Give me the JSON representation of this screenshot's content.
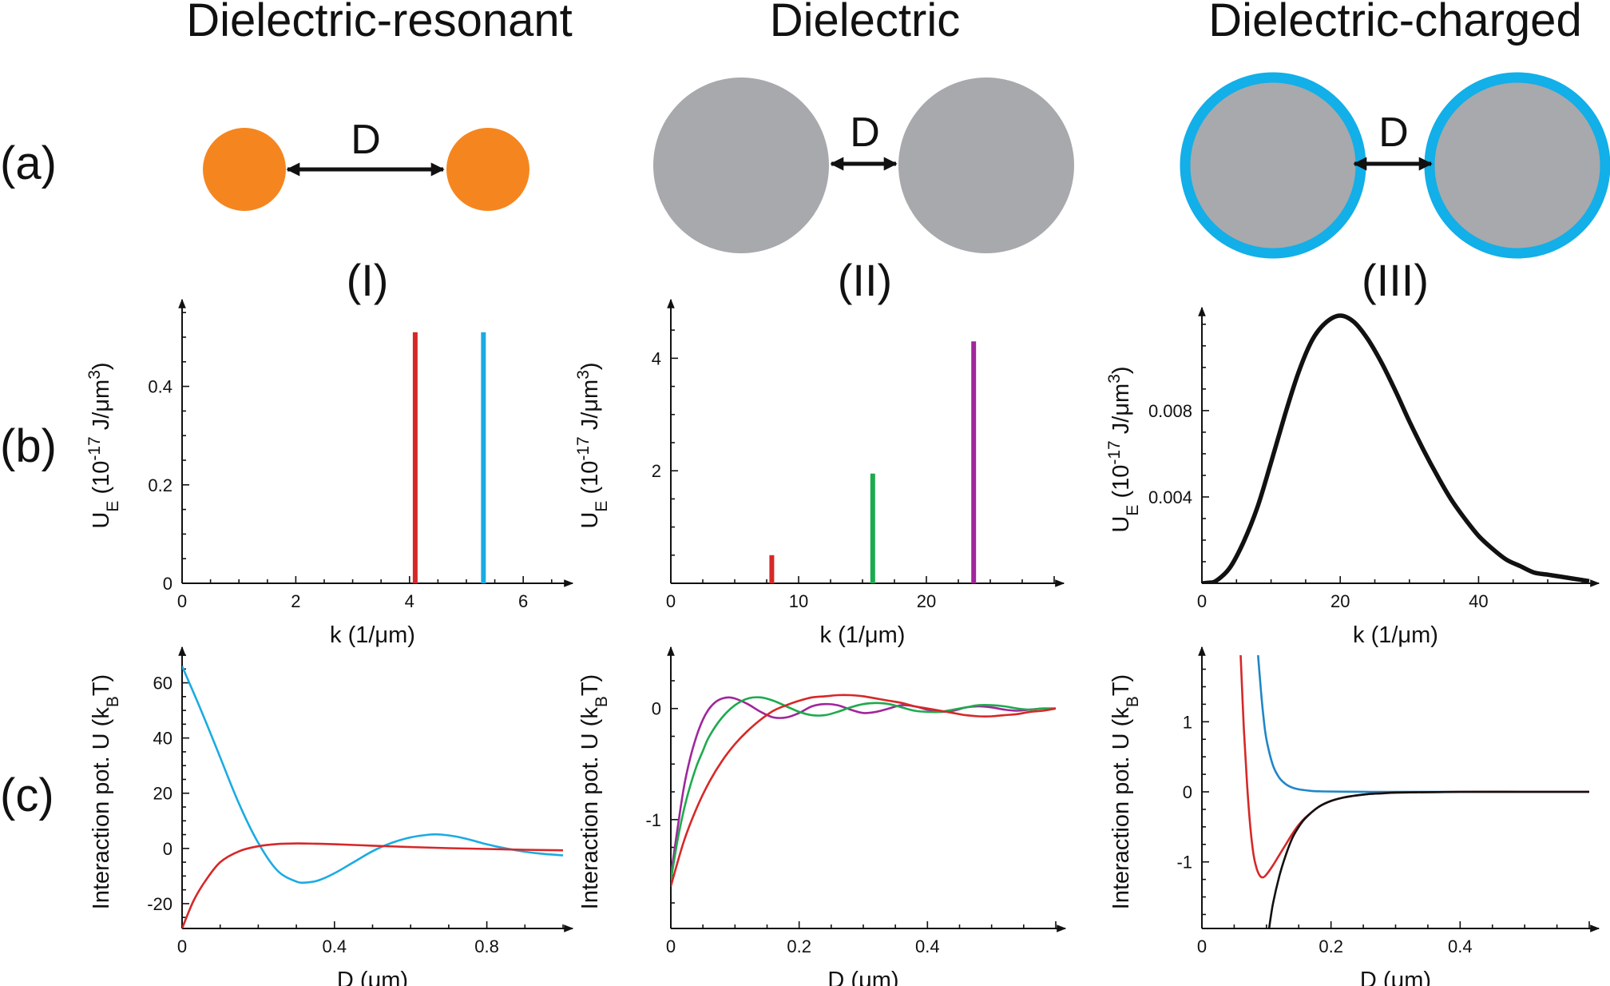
{
  "columns": [
    {
      "title": "Dielectric-resonant",
      "roman": "(I)",
      "particle": {
        "fill": "#F5861F",
        "shell": null
      }
    },
    {
      "title": "Dielectric",
      "roman": "(II)",
      "particle": {
        "fill": "#A7A9AC",
        "shell": null
      }
    },
    {
      "title": "Dielectric-charged",
      "roman": "(III)",
      "particle": {
        "fill": "#A7A9AC",
        "shell": "#12AFE8"
      }
    }
  ],
  "row_labels": [
    "(a)",
    "(b)",
    "(c)"
  ],
  "separation_label": "D",
  "colors": {
    "red": "#D62828",
    "cyan": "#1AABE2",
    "green": "#1EAA4E",
    "purple": "#A0269B",
    "blue": "#1F86C8",
    "black": "#111111"
  },
  "chart_data": [
    {
      "id": "b1",
      "type": "bar",
      "xlabel": "k (1/μm)",
      "ylabel": "U",
      "ylabel_sub": "E",
      "ylabel_paren": " (10",
      "ylabel_exp": "-17",
      "ylabel_unit": " J/μm",
      "ylabel_unit_exp": "3",
      "ylabel_close": ")",
      "xlim": [
        0,
        6.7
      ],
      "ylim": [
        0,
        0.56
      ],
      "xticks": [
        0,
        2,
        4,
        6
      ],
      "xtick_labels": [
        "0",
        "2",
        "4",
        "6"
      ],
      "yticks": [
        0,
        0.2,
        0.4
      ],
      "ytick_labels": [
        "0",
        "0.2",
        "0.4"
      ],
      "bars": [
        {
          "x": 4.1,
          "value": 0.51,
          "color": "red"
        },
        {
          "x": 5.3,
          "value": 0.51,
          "color": "cyan"
        }
      ]
    },
    {
      "id": "b2",
      "type": "bar",
      "xlabel": "k (1/μm)",
      "ylabel": "U",
      "ylabel_sub": "E",
      "ylabel_paren": " (10",
      "ylabel_exp": "-17",
      "ylabel_unit": " J/μm",
      "ylabel_unit_exp": "3",
      "ylabel_close": ")",
      "xlim": [
        0,
        30
      ],
      "ylim": [
        0,
        4.9
      ],
      "xticks": [
        0,
        10,
        20
      ],
      "xtick_labels": [
        "0",
        "10",
        "20"
      ],
      "yticks": [
        2,
        4
      ],
      "ytick_labels": [
        "2",
        "4"
      ],
      "bars": [
        {
          "x": 7.9,
          "value": 0.5,
          "color": "red"
        },
        {
          "x": 15.8,
          "value": 1.95,
          "color": "green"
        },
        {
          "x": 23.7,
          "value": 4.3,
          "color": "purple"
        }
      ]
    },
    {
      "id": "b3",
      "type": "line",
      "xlabel": "k (1/μm)",
      "ylabel": "U",
      "ylabel_sub": "E",
      "ylabel_paren": " (10",
      "ylabel_exp": "-17",
      "ylabel_unit": " J/μm",
      "ylabel_unit_exp": "3",
      "ylabel_close": ")",
      "xlim": [
        0,
        56
      ],
      "ylim": [
        0,
        0.0124
      ],
      "xticks": [
        0,
        20,
        40
      ],
      "xtick_labels": [
        "0",
        "20",
        "40"
      ],
      "yticks": [
        0.004,
        0.008
      ],
      "ytick_labels": [
        "0.004",
        "0.008"
      ],
      "series": [
        {
          "color": "black",
          "x": [
            0,
            1,
            2,
            4,
            6,
            8,
            10,
            12,
            14,
            16,
            18,
            20,
            22,
            24,
            26,
            28,
            30,
            32,
            34,
            36,
            38,
            40,
            42,
            44,
            46,
            48,
            50,
            52,
            54,
            56
          ],
          "y": [
            0,
            3e-05,
            0.0001,
            0.0007,
            0.0019,
            0.0035,
            0.0056,
            0.0078,
            0.0098,
            0.0113,
            0.0121,
            0.0124,
            0.0121,
            0.0113,
            0.0102,
            0.0089,
            0.0075,
            0.0062,
            0.005,
            0.0039,
            0.003,
            0.0022,
            0.0016,
            0.0011,
            0.0008,
            0.0005,
            0.0004,
            0.0003,
            0.0002,
            0.0001
          ]
        }
      ]
    },
    {
      "id": "c1",
      "type": "line",
      "xlabel": "D (μm)",
      "ylabel": "Interaction pot. U (k",
      "ylabel_sub": "B",
      "ylabel_close": "T)",
      "xlim": [
        0,
        1.0
      ],
      "ylim": [
        -29,
        70
      ],
      "xticks": [
        0,
        0.4,
        0.8
      ],
      "xtick_labels": [
        "0",
        "0.4",
        "0.8"
      ],
      "yticks": [
        -20,
        0,
        20,
        40,
        60
      ],
      "ytick_labels": [
        "-20",
        "0",
        "20",
        "40",
        "60"
      ],
      "series": [
        {
          "color": "cyan",
          "x": [
            0,
            0.05,
            0.1,
            0.15,
            0.2,
            0.25,
            0.3,
            0.33,
            0.36,
            0.4,
            0.45,
            0.5,
            0.55,
            0.6,
            0.65,
            0.68,
            0.72,
            0.76,
            0.8,
            0.85,
            0.9,
            0.95,
            1.0
          ],
          "y": [
            66,
            50,
            33,
            16,
            2,
            -8,
            -12,
            -12.3,
            -11.5,
            -9,
            -5,
            -1,
            2,
            4,
            5,
            5,
            4.3,
            3,
            1.5,
            0,
            -1.2,
            -2,
            -2.5
          ]
        },
        {
          "color": "red",
          "x": [
            0,
            0.03,
            0.06,
            0.1,
            0.15,
            0.2,
            0.25,
            0.3,
            0.35,
            0.4,
            0.5,
            0.6,
            0.7,
            0.8,
            0.9,
            1.0
          ],
          "y": [
            -29,
            -19,
            -12,
            -5,
            -1,
            0.8,
            1.6,
            1.8,
            1.7,
            1.5,
            1.0,
            0.5,
            0.1,
            -0.2,
            -0.5,
            -0.7
          ]
        }
      ]
    },
    {
      "id": "c2",
      "type": "line",
      "xlabel": "D (μm)",
      "ylabel": "Interaction pot. U (k",
      "ylabel_sub": "B",
      "ylabel_close": "T)",
      "xlim": [
        0,
        0.6
      ],
      "ylim": [
        -1.98,
        0.48
      ],
      "xticks": [
        0,
        0.2,
        0.4
      ],
      "xtick_labels": [
        "0",
        "0.2",
        "0.4"
      ],
      "yticks": [
        -1,
        0
      ],
      "ytick_labels": [
        "-1",
        "0"
      ],
      "series": [
        {
          "color": "purple",
          "x": [
            0,
            0.005,
            0.01,
            0.02,
            0.03,
            0.04,
            0.05,
            0.06,
            0.07,
            0.08,
            0.09,
            0.1,
            0.12,
            0.14,
            0.16,
            0.18,
            0.2,
            0.22,
            0.24,
            0.26,
            0.28,
            0.3,
            0.32,
            0.34,
            0.36,
            0.38,
            0.4,
            0.42,
            0.44,
            0.46,
            0.48,
            0.5,
            0.52,
            0.54,
            0.56,
            0.58,
            0.6
          ],
          "y": [
            -1.5,
            -1.3,
            -1.1,
            -0.72,
            -0.45,
            -0.25,
            -0.1,
            0.0,
            0.06,
            0.09,
            0.1,
            0.09,
            0.04,
            -0.03,
            -0.08,
            -0.08,
            -0.04,
            0.02,
            0.04,
            0.03,
            -0.01,
            -0.04,
            -0.03,
            0.0,
            0.03,
            0.02,
            -0.01,
            -0.03,
            -0.02,
            0.01,
            0.02,
            0.01,
            -0.01,
            -0.02,
            -0.01,
            0.0,
            0.0
          ]
        },
        {
          "color": "green",
          "x": [
            0,
            0.01,
            0.02,
            0.03,
            0.04,
            0.05,
            0.06,
            0.08,
            0.1,
            0.12,
            0.14,
            0.16,
            0.18,
            0.2,
            0.22,
            0.24,
            0.26,
            0.28,
            0.3,
            0.32,
            0.34,
            0.36,
            0.38,
            0.4,
            0.42,
            0.44,
            0.46,
            0.48,
            0.5,
            0.52,
            0.54,
            0.56,
            0.58,
            0.6
          ],
          "y": [
            -1.55,
            -1.2,
            -0.92,
            -0.7,
            -0.52,
            -0.38,
            -0.25,
            -0.08,
            0.03,
            0.09,
            0.1,
            0.07,
            0.02,
            -0.03,
            -0.06,
            -0.06,
            -0.03,
            0.01,
            0.04,
            0.05,
            0.04,
            0.01,
            -0.02,
            -0.03,
            -0.03,
            -0.01,
            0.01,
            0.03,
            0.03,
            0.02,
            0.0,
            -0.01,
            0.0,
            0.0
          ]
        },
        {
          "color": "red",
          "x": [
            0,
            0.02,
            0.04,
            0.06,
            0.08,
            0.1,
            0.12,
            0.14,
            0.16,
            0.18,
            0.2,
            0.22,
            0.24,
            0.26,
            0.28,
            0.3,
            0.32,
            0.34,
            0.36,
            0.38,
            0.4,
            0.42,
            0.44,
            0.46,
            0.48,
            0.5,
            0.52,
            0.54,
            0.56,
            0.58,
            0.6
          ],
          "y": [
            -1.6,
            -1.2,
            -0.9,
            -0.66,
            -0.47,
            -0.32,
            -0.2,
            -0.1,
            -0.02,
            0.03,
            0.07,
            0.1,
            0.11,
            0.12,
            0.12,
            0.11,
            0.09,
            0.07,
            0.05,
            0.02,
            0.0,
            -0.02,
            -0.04,
            -0.06,
            -0.07,
            -0.07,
            -0.06,
            -0.05,
            -0.03,
            -0.02,
            0.0
          ]
        }
      ]
    },
    {
      "id": "c3",
      "type": "line",
      "xlabel": "D (μm)",
      "ylabel": "Interaction pot. U (k",
      "ylabel_sub": "B",
      "ylabel_close": "T)",
      "xlim": [
        0,
        0.6
      ],
      "ylim": [
        -1.95,
        1.95
      ],
      "xticks": [
        0,
        0.2,
        0.4
      ],
      "xtick_labels": [
        "0",
        "0.2",
        "0.4"
      ],
      "yticks": [
        -1,
        0,
        1
      ],
      "ytick_labels": [
        "-1",
        "0",
        "1"
      ],
      "series": [
        {
          "color": "blue",
          "x": [
            0.087,
            0.09,
            0.095,
            0.1,
            0.11,
            0.12,
            0.13,
            0.14,
            0.15,
            0.17,
            0.19,
            0.22,
            0.26,
            0.3,
            0.4,
            0.5,
            0.6
          ],
          "y": [
            1.95,
            1.6,
            1.1,
            0.75,
            0.38,
            0.2,
            0.11,
            0.06,
            0.035,
            0.013,
            0.006,
            0.002,
            0.0,
            0.0,
            0.0,
            0.0,
            0.0
          ]
        },
        {
          "color": "red",
          "x": [
            0.06,
            0.065,
            0.07,
            0.075,
            0.08,
            0.085,
            0.09,
            0.095,
            0.1,
            0.11,
            0.12,
            0.13,
            0.14,
            0.15,
            0.16,
            0.18,
            0.2,
            0.22,
            0.24,
            0.26,
            0.28,
            0.3,
            0.35,
            0.4,
            0.5,
            0.6
          ],
          "y": [
            1.95,
            0.9,
            0.1,
            -0.5,
            -0.9,
            -1.1,
            -1.2,
            -1.22,
            -1.18,
            -1.05,
            -0.9,
            -0.75,
            -0.6,
            -0.47,
            -0.37,
            -0.22,
            -0.13,
            -0.08,
            -0.05,
            -0.03,
            -0.02,
            -0.01,
            -0.005,
            0.0,
            0.0,
            0.0
          ]
        },
        {
          "color": "black",
          "x": [
            0.104,
            0.11,
            0.12,
            0.13,
            0.14,
            0.15,
            0.16,
            0.18,
            0.2,
            0.22,
            0.24,
            0.26,
            0.28,
            0.3,
            0.35,
            0.4,
            0.5,
            0.6
          ],
          "y": [
            -1.95,
            -1.6,
            -1.2,
            -0.9,
            -0.66,
            -0.5,
            -0.38,
            -0.22,
            -0.13,
            -0.08,
            -0.05,
            -0.03,
            -0.02,
            -0.01,
            -0.005,
            0.0,
            0.0,
            0.0
          ]
        }
      ]
    }
  ]
}
